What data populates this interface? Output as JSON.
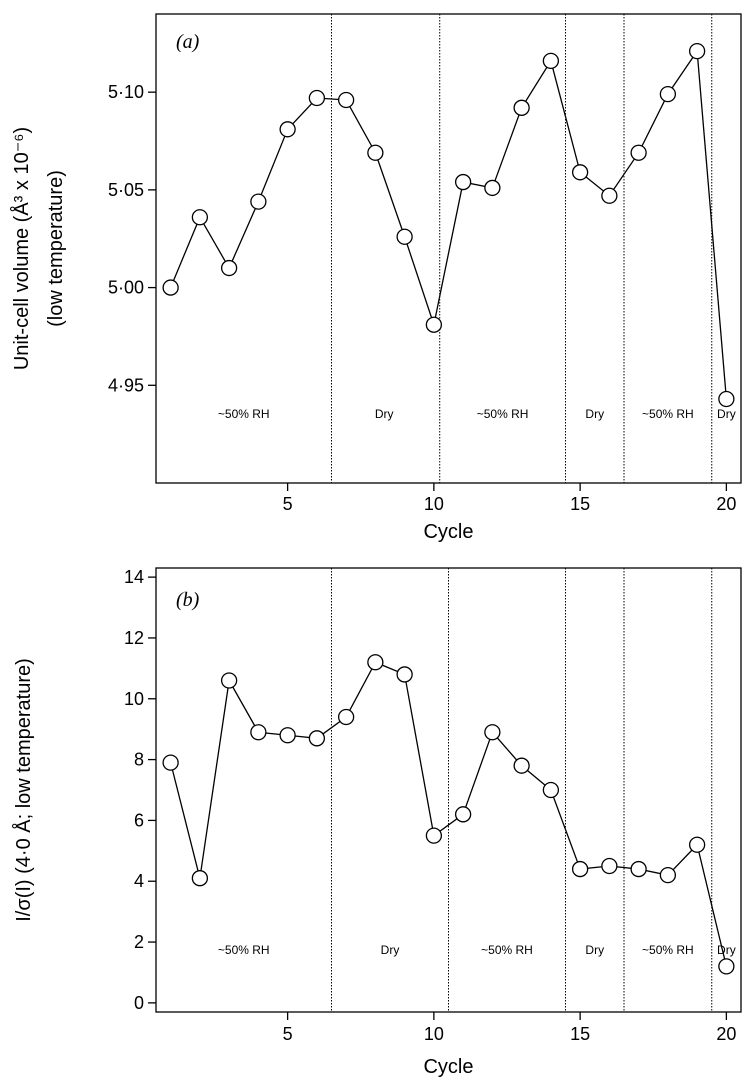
{
  "chart_data": [
    {
      "type": "line",
      "panel_label": "(a)",
      "title": "",
      "xlabel": "Cycle",
      "ylabel_line1": "Unit-cell volume (Å³ x 10⁻⁶)",
      "ylabel_line2": "(low temperature)",
      "xlim": [
        0.5,
        20.5
      ],
      "ylim": [
        4.9,
        5.14
      ],
      "x_ticks": [
        5,
        10,
        15,
        20
      ],
      "x_tick_labels": [
        "5",
        "10",
        "15",
        "20"
      ],
      "y_ticks": [
        4.95,
        5.0,
        5.05,
        5.1
      ],
      "y_tick_labels": [
        "4·95",
        "5·00",
        "5·05",
        "5·10"
      ],
      "grid": false,
      "x": [
        1,
        2,
        3,
        4,
        5,
        6,
        7,
        8,
        9,
        10,
        11,
        12,
        13,
        14,
        15,
        16,
        17,
        18,
        19,
        20
      ],
      "y": [
        5.0,
        5.036,
        5.01,
        5.044,
        5.081,
        5.097,
        5.096,
        5.069,
        5.026,
        4.981,
        5.054,
        5.051,
        5.092,
        5.116,
        5.059,
        5.047,
        5.069,
        5.099,
        5.121,
        4.943
      ],
      "boundaries": [
        6.5,
        10.2,
        14.5,
        16.5,
        19.5
      ],
      "regions": [
        {
          "label": "~50% RH",
          "center": 3.5
        },
        {
          "label": "Dry",
          "center": 8.3
        },
        {
          "label": "~50% RH",
          "center": 12.35
        },
        {
          "label": "Dry",
          "center": 15.5
        },
        {
          "label": "~50% RH",
          "center": 18.0
        },
        {
          "label": "Dry",
          "center": 20.0
        }
      ]
    },
    {
      "type": "line",
      "panel_label": "(b)",
      "title": "",
      "xlabel": "Cycle",
      "ylabel_line1": "I/σ(I) (4·0 Å; low temperature)",
      "xlim": [
        0.5,
        20.5
      ],
      "ylim": [
        -0.3,
        14.3
      ],
      "x_ticks": [
        5,
        10,
        15,
        20
      ],
      "x_tick_labels": [
        "5",
        "10",
        "15",
        "20"
      ],
      "y_ticks": [
        0,
        2,
        4,
        6,
        8,
        10,
        12,
        14
      ],
      "y_tick_labels": [
        "0",
        "2",
        "4",
        "6",
        "8",
        "10",
        "12",
        "14"
      ],
      "grid": false,
      "x": [
        1,
        2,
        3,
        4,
        5,
        6,
        7,
        8,
        9,
        10,
        11,
        12,
        13,
        14,
        15,
        16,
        17,
        18,
        19,
        20
      ],
      "y": [
        7.9,
        4.1,
        10.6,
        8.9,
        8.8,
        8.7,
        9.4,
        11.2,
        10.8,
        5.5,
        6.2,
        8.9,
        7.8,
        7.0,
        4.4,
        4.5,
        4.4,
        4.2,
        5.2,
        1.2
      ],
      "boundaries": [
        6.5,
        10.5,
        14.5,
        16.5,
        19.5
      ],
      "regions": [
        {
          "label": "~50% RH",
          "center": 3.5
        },
        {
          "label": "Dry",
          "center": 8.5
        },
        {
          "label": "~50% RH",
          "center": 12.5
        },
        {
          "label": "Dry",
          "center": 15.5
        },
        {
          "label": "~50% RH",
          "center": 18.0
        },
        {
          "label": "Dry",
          "center": 20.0
        }
      ]
    }
  ]
}
